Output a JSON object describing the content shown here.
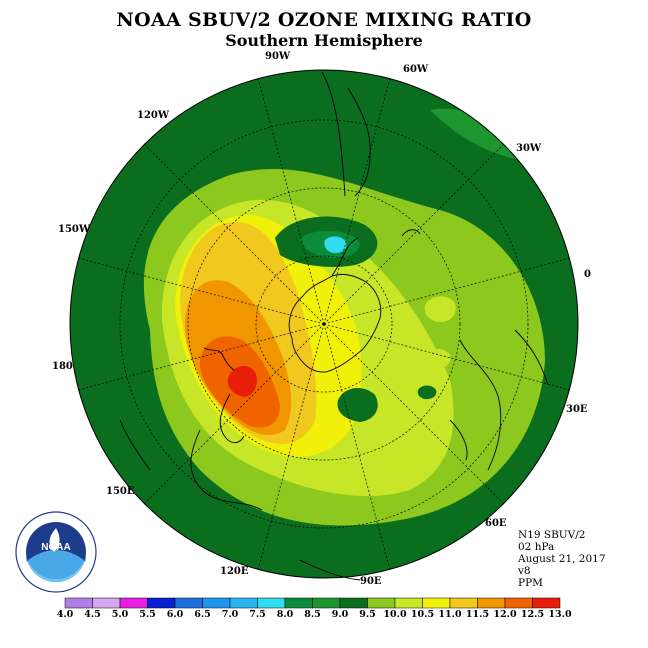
{
  "title": "NOAA SBUV/2 OZONE MIXING RATIO",
  "subtitle": "Southern Hemisphere",
  "meridian_labels": {
    "w90": "90W",
    "w60": "60W",
    "w120": "120W",
    "w30": "30W",
    "w150": "150W",
    "zero": "0",
    "deg180": "180",
    "e30": "30E",
    "e150": "150E",
    "e60": "60E",
    "e120": "120E",
    "e90": "90E"
  },
  "info": {
    "satellite": "N19 SBUV/2",
    "level": "02 hPa",
    "date": "August 21, 2017",
    "version": "v8",
    "units": "PPM"
  },
  "logo_text": "NOAA",
  "colorbar": {
    "ticks": [
      "4.0",
      "4.5",
      "5.0",
      "5.5",
      "6.0",
      "6.5",
      "7.0",
      "7.5",
      "8.0",
      "8.5",
      "9.0",
      "9.5",
      "10.0",
      "10.5",
      "11.0",
      "11.5",
      "12.0",
      "12.5",
      "13.0"
    ],
    "colors": [
      "#b07fe6",
      "#d7a6ee",
      "#e61ee6",
      "#0a1ed2",
      "#1e6edc",
      "#1e96f0",
      "#28b4f0",
      "#32dcf0",
      "#0a8c3c",
      "#1e9630",
      "#0a6e1e",
      "#8cc81e",
      "#c8e628",
      "#f0f00a",
      "#f0c81e",
      "#f09600",
      "#f06400",
      "#e61e0a",
      "#8c5a32"
    ]
  },
  "map_colors": {
    "c9_5": "#8cc81e",
    "c10": "#c8e628",
    "c10_5": "#f0f00a",
    "c11": "#f0c81e",
    "c11_5": "#f09600",
    "c12": "#f06400",
    "c12_5": "#e61e0a",
    "c8_5": "#1e9630",
    "c9": "#0a6e1e",
    "c7_5": "#32dcf0",
    "c8": "#0a8c3c"
  }
}
